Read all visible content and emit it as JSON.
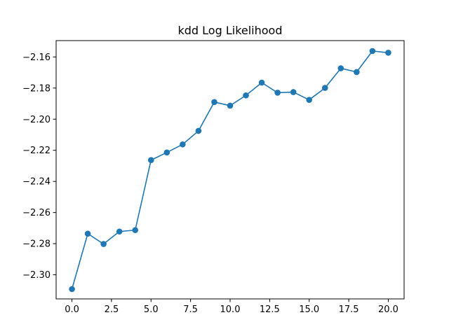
{
  "chart_data": {
    "type": "line",
    "title": "kdd Log Likelihood",
    "xlabel": "",
    "ylabel": "",
    "xlim": [
      -1.0,
      21.0
    ],
    "ylim": [
      -2.3155,
      -2.1495
    ],
    "xticks": [
      {
        "value": 0.0,
        "label": "0.0"
      },
      {
        "value": 2.5,
        "label": "2.5"
      },
      {
        "value": 5.0,
        "label": "5.0"
      },
      {
        "value": 7.5,
        "label": "7.5"
      },
      {
        "value": 10.0,
        "label": "10.0"
      },
      {
        "value": 12.5,
        "label": "12.5"
      },
      {
        "value": 15.0,
        "label": "15.0"
      },
      {
        "value": 17.5,
        "label": "17.5"
      },
      {
        "value": 20.0,
        "label": "20.0"
      }
    ],
    "yticks": [
      {
        "value": -2.3,
        "label": "−2.30"
      },
      {
        "value": -2.28,
        "label": "−2.28"
      },
      {
        "value": -2.26,
        "label": "−2.26"
      },
      {
        "value": -2.24,
        "label": "−2.24"
      },
      {
        "value": -2.22,
        "label": "−2.22"
      },
      {
        "value": -2.2,
        "label": "−2.20"
      },
      {
        "value": -2.18,
        "label": "−2.18"
      },
      {
        "value": -2.16,
        "label": "−2.16"
      }
    ],
    "grid": false,
    "series": [
      {
        "color": "#1f77b4",
        "marker": "circle",
        "x": [
          0,
          1,
          2,
          3,
          4,
          5,
          6,
          7,
          8,
          9,
          10,
          11,
          12,
          13,
          14,
          15,
          16,
          17,
          18,
          19,
          20
        ],
        "y": [
          -2.3092,
          -2.2736,
          -2.2802,
          -2.2722,
          -2.2713,
          -2.2263,
          -2.2214,
          -2.2162,
          -2.2075,
          -2.189,
          -2.1913,
          -2.1847,
          -2.1765,
          -2.183,
          -2.1826,
          -2.1876,
          -2.1799,
          -2.1673,
          -2.1697,
          -2.1562,
          -2.1573
        ]
      }
    ]
  }
}
